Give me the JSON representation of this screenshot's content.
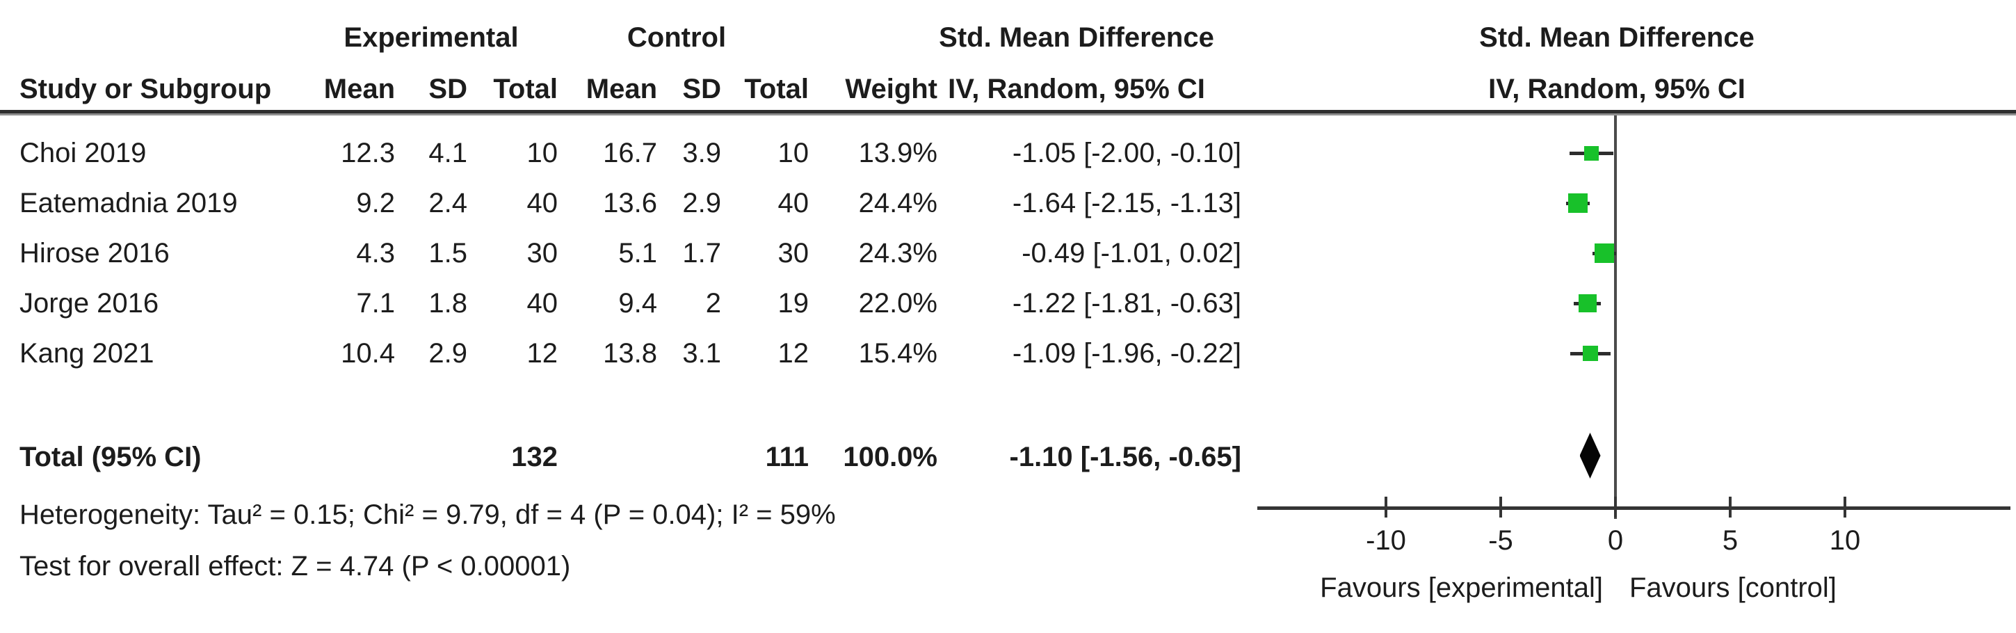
{
  "colors": {
    "background": "#ffffff",
    "text": "#1c1c1c",
    "marker_green": "#18c12a",
    "diamond_black": "#050505",
    "line_gray": "#3a3a3a"
  },
  "header": {
    "group_experimental": "Experimental",
    "group_control": "Control",
    "smd_left": "Std. Mean Difference",
    "smd_right": "Std. Mean Difference",
    "study": "Study or Subgroup",
    "mean_exp": "Mean",
    "sd_exp": "SD",
    "total_exp": "Total",
    "mean_ctl": "Mean",
    "sd_ctl": "SD",
    "total_ctl": "Total",
    "weight": "Weight",
    "ci_left": "IV, Random, 95% CI",
    "ci_right": "IV, Random, 95% CI"
  },
  "rows": [
    {
      "study": "Choi 2019",
      "mean_e": "12.3",
      "sd_e": "4.1",
      "total_e": "10",
      "mean_c": "16.7",
      "sd_c": "3.9",
      "total_c": "10",
      "weight": "13.9%",
      "ci": "-1.05 [-2.00, -0.10]"
    },
    {
      "study": "Eatemadnia 2019",
      "mean_e": "9.2",
      "sd_e": "2.4",
      "total_e": "40",
      "mean_c": "13.6",
      "sd_c": "2.9",
      "total_c": "40",
      "weight": "24.4%",
      "ci": "-1.64 [-2.15, -1.13]"
    },
    {
      "study": "Hirose 2016",
      "mean_e": "4.3",
      "sd_e": "1.5",
      "total_e": "30",
      "mean_c": "5.1",
      "sd_c": "1.7",
      "total_c": "30",
      "weight": "24.3%",
      "ci": "-0.49 [-1.01, 0.02]"
    },
    {
      "study": "Jorge 2016",
      "mean_e": "7.1",
      "sd_e": "1.8",
      "total_e": "40",
      "mean_c": "9.4",
      "sd_c": "2",
      "total_c": "19",
      "weight": "22.0%",
      "ci": "-1.22 [-1.81, -0.63]"
    },
    {
      "study": "Kang 2021",
      "mean_e": "10.4",
      "sd_e": "2.9",
      "total_e": "12",
      "mean_c": "13.8",
      "sd_c": "3.1",
      "total_c": "12",
      "weight": "15.4%",
      "ci": "-1.09 [-1.96, -0.22]"
    }
  ],
  "total_row": {
    "label": "Total (95% CI)",
    "total_e": "132",
    "total_c": "111",
    "weight": "100.0%",
    "ci": "-1.10 [-1.56, -0.65]"
  },
  "footnotes": {
    "heterogeneity": "Heterogeneity: Tau² = 0.15; Chi² = 9.79, df = 4 (P = 0.04); I² = 59%",
    "overall_effect": "Test for overall effect: Z = 4.74 (P < 0.00001)"
  },
  "chart_data": {
    "type": "scatter",
    "subtype": "forest_plot",
    "title": "Std. Mean Difference",
    "effect_model": "IV, Random, 95% CI",
    "x_ticks": [
      -10,
      -5,
      0,
      5,
      10
    ],
    "xlim": [
      -15.5,
      17
    ],
    "zero_line": 0,
    "studies": [
      {
        "name": "Choi 2019",
        "est": -1.05,
        "lo": -2.0,
        "hi": -0.1,
        "weight_pct": 13.9
      },
      {
        "name": "Eatemadnia 2019",
        "est": -1.64,
        "lo": -2.15,
        "hi": -1.13,
        "weight_pct": 24.4
      },
      {
        "name": "Hirose 2016",
        "est": -0.49,
        "lo": -1.01,
        "hi": 0.02,
        "weight_pct": 24.3
      },
      {
        "name": "Jorge 2016",
        "est": -1.22,
        "lo": -1.81,
        "hi": -0.63,
        "weight_pct": 22.0
      },
      {
        "name": "Kang 2021",
        "est": -1.09,
        "lo": -1.96,
        "hi": -0.22,
        "weight_pct": 15.4
      }
    ],
    "total": {
      "name": "Total (95% CI)",
      "est": -1.1,
      "lo": -1.56,
      "hi": -0.65,
      "weight_pct": 100.0
    },
    "favours_left": "Favours [experimental]",
    "favours_right": "Favours [control]"
  }
}
